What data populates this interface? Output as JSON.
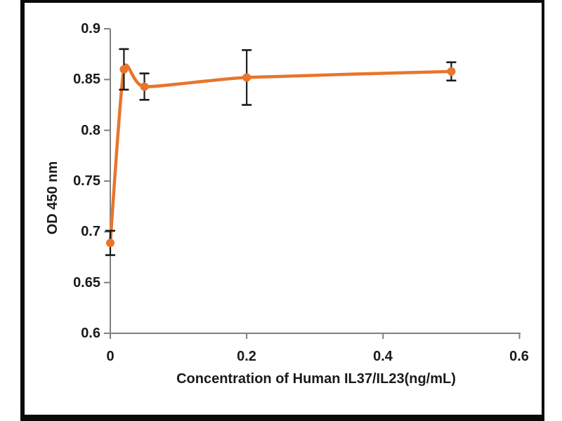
{
  "chart_data": {
    "type": "line",
    "title": "",
    "xlabel": "Concentration of Human IL37/IL23(ng/mL)",
    "ylabel": "OD 450 nm",
    "xlim": [
      0,
      0.6
    ],
    "ylim": [
      0.6,
      0.9
    ],
    "x_ticks": [
      0,
      0.2,
      0.4,
      0.6
    ],
    "x_tick_labels": [
      "0",
      "0.2",
      "0.4",
      "0.6"
    ],
    "y_ticks": [
      0.6,
      0.65,
      0.7,
      0.75,
      0.8,
      0.85,
      0.9
    ],
    "y_tick_labels_desc": [
      "0.9",
      "0.85",
      "0.8",
      "0.75",
      "0.7",
      "0.65",
      "0.6"
    ],
    "grid": false,
    "legend": "none",
    "line_smooth": true,
    "series": [
      {
        "points": [
          {
            "x": 0,
            "y": 0.689,
            "err": 0.012
          },
          {
            "x": 0.02,
            "y": 0.86,
            "err": 0.02
          },
          {
            "x": 0.05,
            "y": 0.843,
            "err": 0.013
          },
          {
            "x": 0.2,
            "y": 0.852,
            "err": 0.027
          },
          {
            "x": 0.5,
            "y": 0.858,
            "err": 0.009
          }
        ]
      }
    ],
    "colors": {
      "line": "#E8752C",
      "marker": "#E8752C",
      "error_bar": "#1A1A1A",
      "axis": "#808080",
      "text": "#1A1A1A",
      "frame_border": "#0A0A0A",
      "background": "#FFFFFF"
    }
  }
}
